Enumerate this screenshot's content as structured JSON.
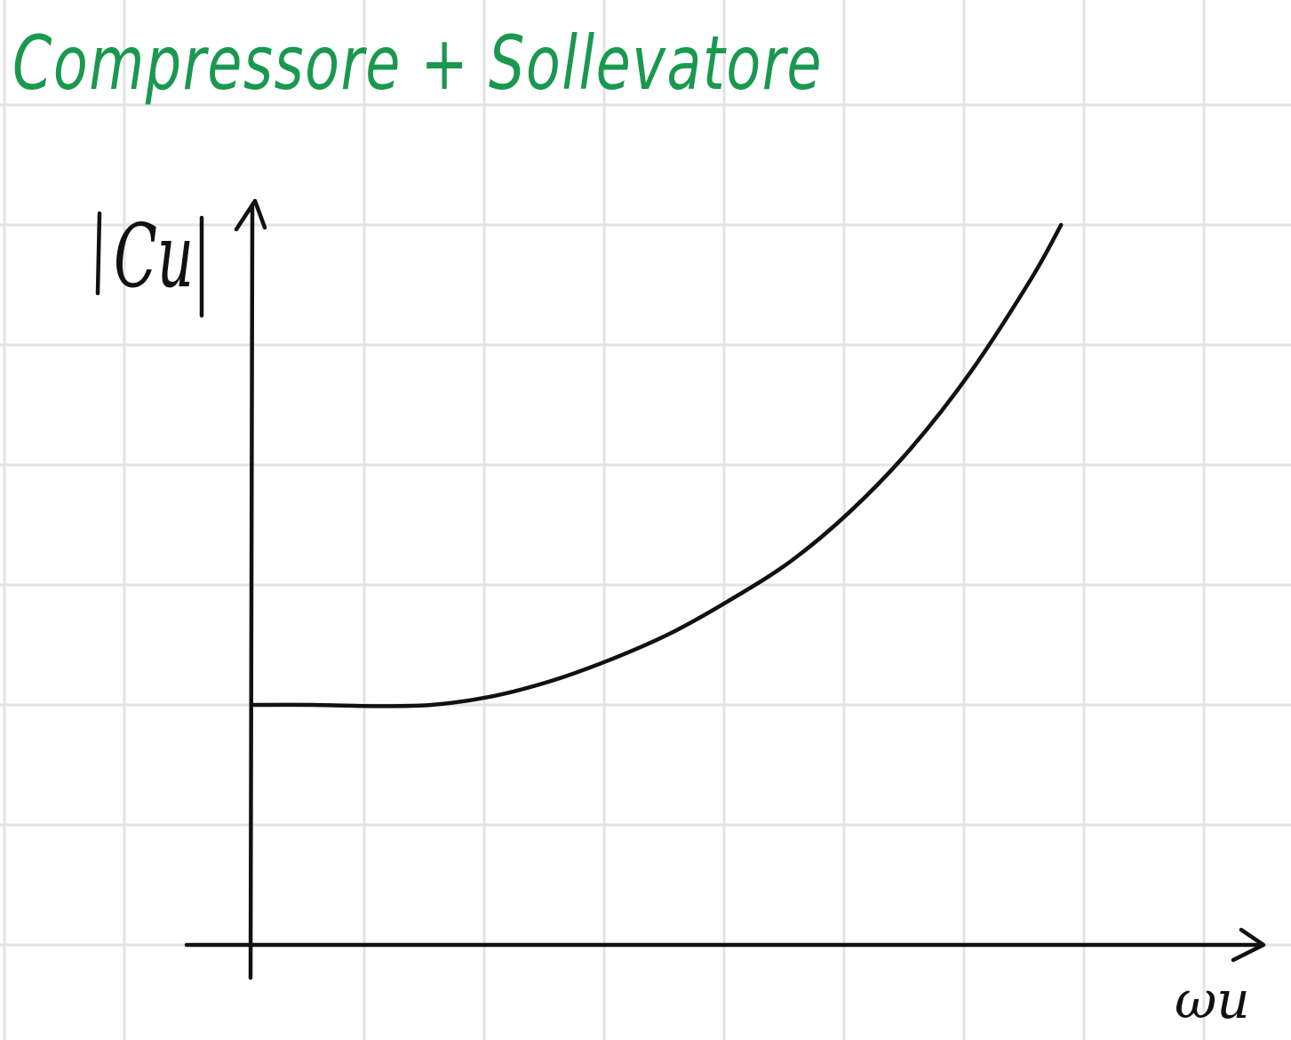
{
  "chart_data": {
    "type": "line",
    "title": "Compressore + Sollevatore",
    "ylabel": "|Cu|",
    "xlabel": "ωu",
    "grid": true,
    "ticks": "none",
    "series": [
      {
        "x": [
          0,
          0.5,
          1,
          1.5,
          2,
          2.5,
          3,
          3.5,
          4,
          4.5,
          5,
          5.5,
          6,
          6.5,
          6.75
        ],
        "y": [
          2.0,
          2.0,
          1.99,
          2.0,
          2.07,
          2.2,
          2.38,
          2.6,
          2.88,
          3.2,
          3.62,
          4.14,
          4.78,
          5.55,
          6.0
        ]
      }
    ],
    "xlim": [
      0,
      8
    ],
    "ylim": [
      0,
      6.5
    ]
  },
  "colors": {
    "title": "#1a9850",
    "ink": "#111111",
    "grid": "#e3e3e3"
  }
}
